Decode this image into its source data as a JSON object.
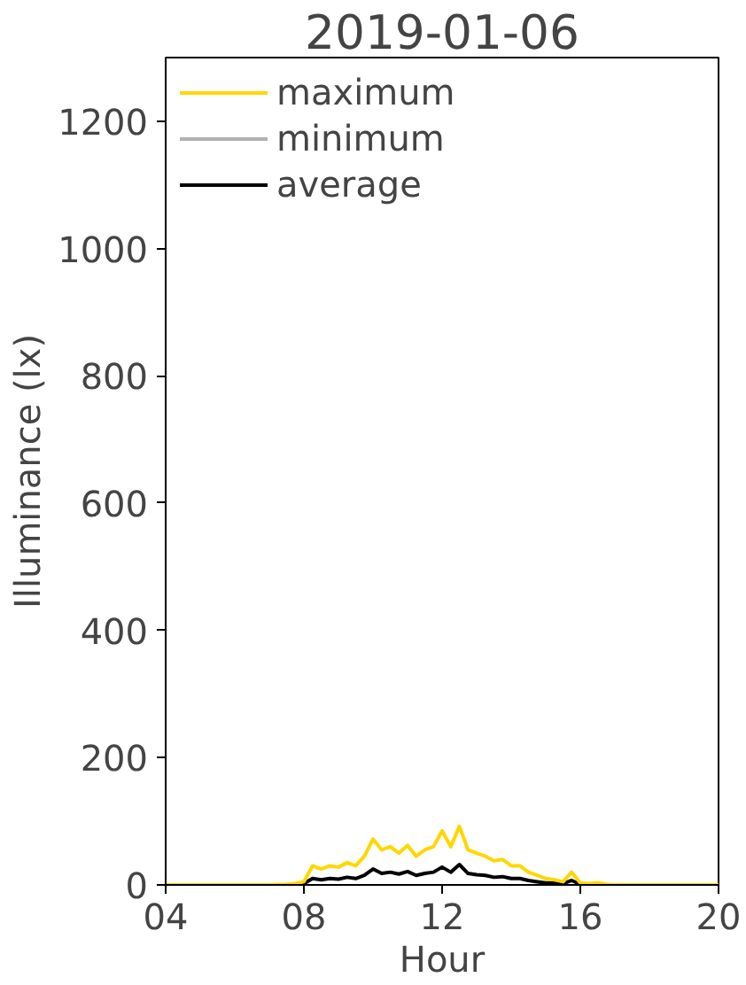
{
  "chart_data": {
    "type": "line",
    "title": "2019-01-06",
    "xlabel": "Hour",
    "ylabel": "Illuminance (lx)",
    "x": [
      4,
      5,
      6,
      7,
      7.5,
      7.75,
      8,
      8.25,
      8.5,
      8.75,
      9,
      9.25,
      9.5,
      9.75,
      10,
      10.25,
      10.5,
      10.75,
      11,
      11.25,
      11.5,
      11.75,
      12,
      12.25,
      12.5,
      12.75,
      13,
      13.25,
      13.5,
      13.75,
      14,
      14.25,
      14.5,
      14.75,
      15,
      15.25,
      15.5,
      15.75,
      16,
      16.25,
      16.5,
      16.75,
      17,
      18,
      19,
      20
    ],
    "series": [
      {
        "name": "maximum",
        "color": "#ffd700",
        "values": [
          0,
          0,
          0,
          0,
          1,
          2,
          5,
          30,
          25,
          30,
          28,
          35,
          30,
          45,
          72,
          55,
          60,
          50,
          62,
          45,
          55,
          60,
          85,
          60,
          92,
          55,
          50,
          45,
          38,
          40,
          30,
          30,
          20,
          15,
          10,
          8,
          5,
          20,
          3,
          2,
          3,
          1,
          0,
          0,
          0,
          0
        ]
      },
      {
        "name": "minimum",
        "color": "#b0b0b0",
        "values": [
          null,
          null,
          null,
          null,
          null,
          null,
          null,
          null,
          null,
          null,
          null,
          null,
          null,
          null,
          null,
          null,
          null,
          null,
          null,
          null,
          null,
          null,
          null,
          null,
          null,
          null,
          null,
          null,
          null,
          null,
          null,
          null,
          null,
          null,
          null,
          null,
          null,
          null,
          null,
          null,
          null,
          null,
          null,
          null,
          null,
          null
        ]
      },
      {
        "name": "average",
        "color": "#000000",
        "values": [
          null,
          null,
          null,
          null,
          0,
          1,
          2,
          10,
          8,
          10,
          9,
          12,
          10,
          15,
          25,
          18,
          20,
          17,
          21,
          15,
          18,
          20,
          28,
          20,
          32,
          18,
          16,
          15,
          12,
          13,
          10,
          10,
          7,
          5,
          3,
          3,
          2,
          7,
          1,
          1,
          1,
          0,
          0,
          null,
          null,
          null
        ]
      }
    ],
    "xlim": [
      4,
      20
    ],
    "xticks": [
      {
        "value": 4,
        "label": "04"
      },
      {
        "value": 8,
        "label": "08"
      },
      {
        "value": 12,
        "label": "12"
      },
      {
        "value": 16,
        "label": "16"
      },
      {
        "value": 20,
        "label": "20"
      }
    ],
    "ylim": [
      0,
      1300
    ],
    "yticks": [
      0,
      200,
      400,
      600,
      800,
      1000,
      1200
    ],
    "grid": false,
    "legend": "top left",
    "line_style": "solid",
    "marker": "none"
  }
}
